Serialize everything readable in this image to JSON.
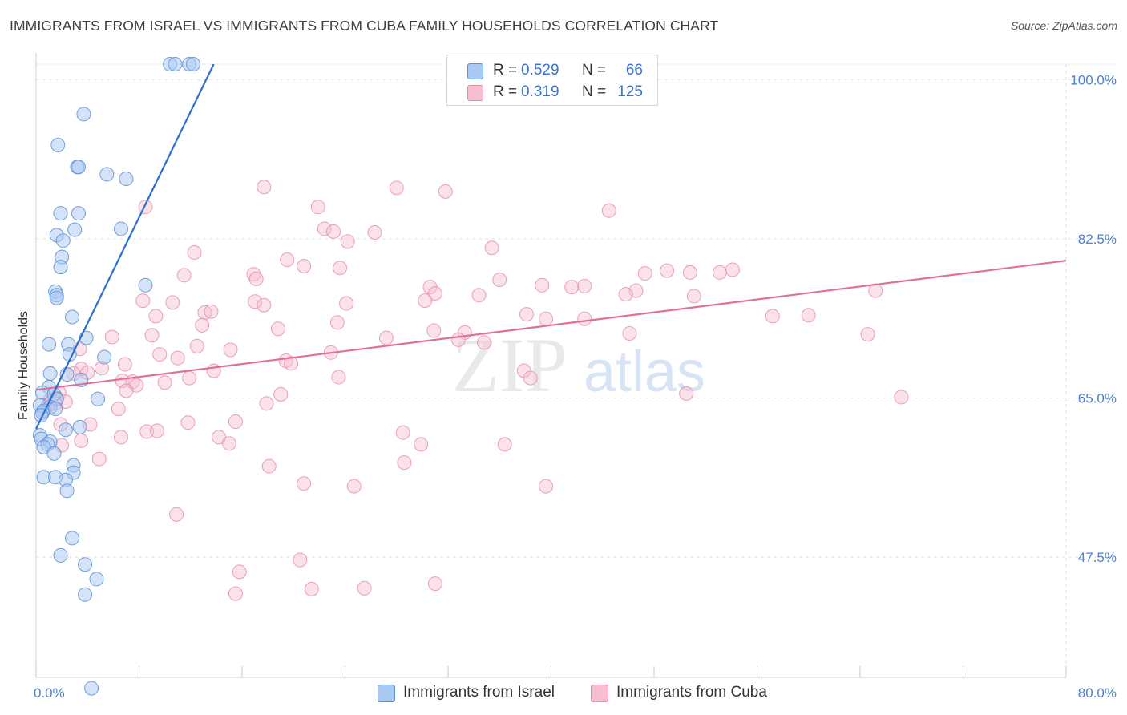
{
  "title": "IMMIGRANTS FROM ISRAEL VS IMMIGRANTS FROM CUBA FAMILY HOUSEHOLDS CORRELATION CHART",
  "source": "Source: ZipAtlas.com",
  "watermark": {
    "zip": "ZIP",
    "atlas": "atlas"
  },
  "colors": {
    "israel_fill": "#a9c8f2",
    "israel_stroke": "#5a8fd8",
    "israel_line": "#2a6fd0",
    "cuba_fill": "#f6bfd0",
    "cuba_stroke": "#e58aa8",
    "cuba_line": "#e0709a",
    "tick_text": "#4a7fd4",
    "grid": "#e3e3e3"
  },
  "legend": {
    "rows": [
      {
        "r_label": "R =",
        "r_value": "0.529",
        "n_label": "N =",
        "n_value": "66"
      },
      {
        "r_label": "R =",
        "r_value": "0.319",
        "n_label": "N =",
        "n_value": "125"
      }
    ]
  },
  "bottom_legend": {
    "israel": "Immigrants from Israel",
    "cuba": "Immigrants from Cuba"
  },
  "chart_data": {
    "type": "scatter",
    "title": "IMMIGRANTS FROM ISRAEL VS IMMIGRANTS FROM CUBA FAMILY HOUSEHOLDS CORRELATION CHART",
    "xlabel": "",
    "ylabel": "Family Households",
    "xlim": [
      0,
      80
    ],
    "ylim": [
      34.3,
      101.7
    ],
    "x_tick_labels": [
      "0.0%",
      "80.0%"
    ],
    "y_ticks": [
      47.5,
      65.0,
      82.5,
      100.0
    ],
    "y_tick_labels": [
      "47.5%",
      "65.0%",
      "82.5%",
      "100.0%"
    ],
    "grid": true,
    "legend_position": "top-center",
    "series": [
      {
        "name": "Immigrants from Israel",
        "R": 0.529,
        "N": 66,
        "trend": [
          [
            0.0,
            61.6
          ],
          [
            13.8,
            101.7
          ]
        ],
        "points": [
          [
            10.4,
            101.7
          ],
          [
            10.8,
            101.7
          ],
          [
            11.9,
            101.7
          ],
          [
            12.2,
            101.7
          ],
          [
            3.7,
            96.2
          ],
          [
            1.7,
            92.8
          ],
          [
            3.2,
            90.4
          ],
          [
            3.3,
            90.4
          ],
          [
            5.5,
            89.6
          ],
          [
            7.0,
            89.1
          ],
          [
            1.9,
            85.3
          ],
          [
            3.3,
            85.3
          ],
          [
            1.6,
            82.9
          ],
          [
            3.0,
            83.5
          ],
          [
            6.6,
            83.6
          ],
          [
            2.1,
            82.3
          ],
          [
            2.0,
            80.5
          ],
          [
            1.9,
            79.4
          ],
          [
            8.5,
            77.4
          ],
          [
            1.5,
            76.7
          ],
          [
            1.6,
            76.3
          ],
          [
            1.6,
            76.0
          ],
          [
            2.8,
            73.9
          ],
          [
            3.9,
            71.6
          ],
          [
            1.0,
            70.9
          ],
          [
            2.5,
            70.9
          ],
          [
            2.6,
            69.8
          ],
          [
            5.3,
            69.5
          ],
          [
            1.1,
            67.7
          ],
          [
            2.4,
            67.6
          ],
          [
            3.5,
            67.0
          ],
          [
            1.0,
            66.2
          ],
          [
            0.5,
            65.6
          ],
          [
            1.4,
            65.4
          ],
          [
            1.6,
            64.9
          ],
          [
            4.8,
            64.9
          ],
          [
            0.3,
            64.2
          ],
          [
            1.1,
            64.0
          ],
          [
            0.6,
            63.6
          ],
          [
            1.5,
            63.8
          ],
          [
            0.5,
            63.4
          ],
          [
            0.4,
            63.1
          ],
          [
            3.4,
            61.8
          ],
          [
            2.3,
            61.5
          ],
          [
            0.3,
            60.9
          ],
          [
            0.4,
            60.5
          ],
          [
            1.1,
            60.2
          ],
          [
            0.9,
            59.9
          ],
          [
            0.6,
            59.6
          ],
          [
            1.4,
            58.9
          ],
          [
            2.9,
            57.6
          ],
          [
            2.9,
            56.8
          ],
          [
            0.6,
            56.3
          ],
          [
            1.5,
            56.3
          ],
          [
            2.3,
            56.0
          ],
          [
            2.4,
            54.8
          ],
          [
            2.8,
            49.6
          ],
          [
            1.9,
            47.7
          ],
          [
            3.8,
            46.7
          ],
          [
            4.7,
            45.1
          ],
          [
            3.8,
            43.4
          ],
          [
            4.3,
            33.1
          ]
        ]
      },
      {
        "name": "Immigrants from Cuba",
        "R": 0.319,
        "N": 125,
        "trend": [
          [
            0.0,
            65.9
          ],
          [
            80.0,
            80.1
          ]
        ],
        "points": [
          [
            17.7,
            88.2
          ],
          [
            28.0,
            88.1
          ],
          [
            31.8,
            87.7
          ],
          [
            8.5,
            86.0
          ],
          [
            21.9,
            86.0
          ],
          [
            44.5,
            85.6
          ],
          [
            22.4,
            83.6
          ],
          [
            23.1,
            83.3
          ],
          [
            26.3,
            83.2
          ],
          [
            24.2,
            82.2
          ],
          [
            35.4,
            81.5
          ],
          [
            12.3,
            81.0
          ],
          [
            19.5,
            80.2
          ],
          [
            20.8,
            79.5
          ],
          [
            23.6,
            79.3
          ],
          [
            54.1,
            79.1
          ],
          [
            49.0,
            79.0
          ],
          [
            50.8,
            78.8
          ],
          [
            53.1,
            78.8
          ],
          [
            47.3,
            78.7
          ],
          [
            11.5,
            78.5
          ],
          [
            16.9,
            78.6
          ],
          [
            17.1,
            78.1
          ],
          [
            36.0,
            78.0
          ],
          [
            39.3,
            77.4
          ],
          [
            30.6,
            77.2
          ],
          [
            41.6,
            77.2
          ],
          [
            42.6,
            77.3
          ],
          [
            46.6,
            76.8
          ],
          [
            65.2,
            76.8
          ],
          [
            31.0,
            76.5
          ],
          [
            34.4,
            76.3
          ],
          [
            45.8,
            76.4
          ],
          [
            51.1,
            76.2
          ],
          [
            8.3,
            75.7
          ],
          [
            17.0,
            75.6
          ],
          [
            30.2,
            75.7
          ],
          [
            10.6,
            75.5
          ],
          [
            24.1,
            75.4
          ],
          [
            17.7,
            75.2
          ],
          [
            13.1,
            74.4
          ],
          [
            13.6,
            74.5
          ],
          [
            9.3,
            74.0
          ],
          [
            38.1,
            74.2
          ],
          [
            57.2,
            74.0
          ],
          [
            60.0,
            74.1
          ],
          [
            39.6,
            73.7
          ],
          [
            42.6,
            73.7
          ],
          [
            23.4,
            73.3
          ],
          [
            12.9,
            73.0
          ],
          [
            18.8,
            72.6
          ],
          [
            30.9,
            72.4
          ],
          [
            33.3,
            72.2
          ],
          [
            64.6,
            72.0
          ],
          [
            46.1,
            72.1
          ],
          [
            9.0,
            71.9
          ],
          [
            5.9,
            71.7
          ],
          [
            27.2,
            71.6
          ],
          [
            32.8,
            71.4
          ],
          [
            34.8,
            71.1
          ],
          [
            12.5,
            70.7
          ],
          [
            15.1,
            70.3
          ],
          [
            3.4,
            70.4
          ],
          [
            22.9,
            70.0
          ],
          [
            9.6,
            69.8
          ],
          [
            11.0,
            69.4
          ],
          [
            19.4,
            69.1
          ],
          [
            19.8,
            68.8
          ],
          [
            6.9,
            68.7
          ],
          [
            5.1,
            68.3
          ],
          [
            3.5,
            68.2
          ],
          [
            13.8,
            68.0
          ],
          [
            37.9,
            68.0
          ],
          [
            4.0,
            67.8
          ],
          [
            2.9,
            67.7
          ],
          [
            23.5,
            67.3
          ],
          [
            11.9,
            67.2
          ],
          [
            38.4,
            67.2
          ],
          [
            6.7,
            66.9
          ],
          [
            7.5,
            66.8
          ],
          [
            10.0,
            66.7
          ],
          [
            7.8,
            66.4
          ],
          [
            7.0,
            65.8
          ],
          [
            1.8,
            65.6
          ],
          [
            19.0,
            65.4
          ],
          [
            50.5,
            65.5
          ],
          [
            67.2,
            65.1
          ],
          [
            1.6,
            65.0
          ],
          [
            1.1,
            64.8
          ],
          [
            2.3,
            64.6
          ],
          [
            17.9,
            64.4
          ],
          [
            0.9,
            64.1
          ],
          [
            1.5,
            64.4
          ],
          [
            6.4,
            63.8
          ],
          [
            11.8,
            62.3
          ],
          [
            15.5,
            62.4
          ],
          [
            4.2,
            62.1
          ],
          [
            1.9,
            62.1
          ],
          [
            8.6,
            61.3
          ],
          [
            28.5,
            61.2
          ],
          [
            9.4,
            61.4
          ],
          [
            14.2,
            60.7
          ],
          [
            6.6,
            60.7
          ],
          [
            3.5,
            60.3
          ],
          [
            15.0,
            60.0
          ],
          [
            2.0,
            59.8
          ],
          [
            29.9,
            59.9
          ],
          [
            36.4,
            59.9
          ],
          [
            4.9,
            58.3
          ],
          [
            28.6,
            57.9
          ],
          [
            18.1,
            57.5
          ],
          [
            20.8,
            55.6
          ],
          [
            24.7,
            55.3
          ],
          [
            39.6,
            55.3
          ],
          [
            10.9,
            52.2
          ],
          [
            20.5,
            47.2
          ],
          [
            15.8,
            45.9
          ],
          [
            15.5,
            43.5
          ],
          [
            21.4,
            44.0
          ],
          [
            25.5,
            44.1
          ],
          [
            31.0,
            44.6
          ]
        ]
      }
    ]
  }
}
